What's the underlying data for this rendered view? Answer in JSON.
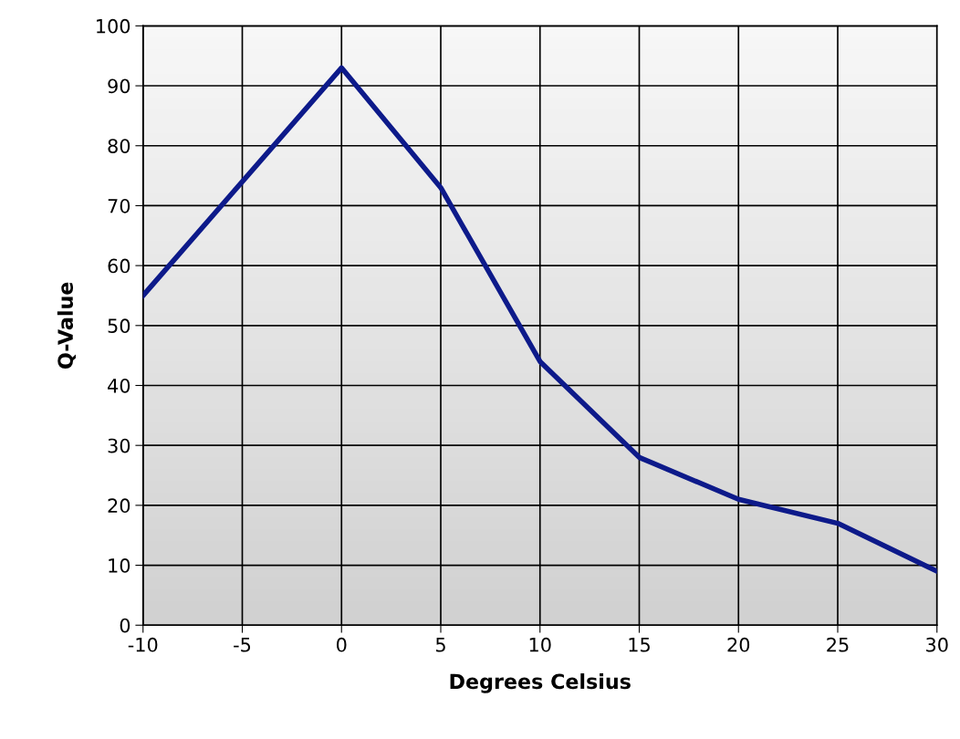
{
  "chart_data": {
    "type": "line",
    "xlabel": "Degrees Celsius",
    "ylabel": "Q-Value",
    "x": [
      -10,
      -5,
      0,
      5,
      10,
      15,
      20,
      25,
      30
    ],
    "series": [
      {
        "color": "#0d1a8a",
        "values": [
          55,
          74,
          93,
          73,
          44,
          28,
          21,
          17,
          9
        ]
      }
    ],
    "xlim": [
      -10,
      30
    ],
    "xticks": [
      -10,
      -5,
      0,
      5,
      10,
      15,
      20,
      25,
      30
    ],
    "ylim": [
      0,
      100
    ],
    "yticks": [
      0,
      10,
      20,
      30,
      40,
      50,
      60,
      70,
      80,
      90,
      100
    ],
    "grid": true,
    "marker": "none",
    "line_style": "solid"
  }
}
